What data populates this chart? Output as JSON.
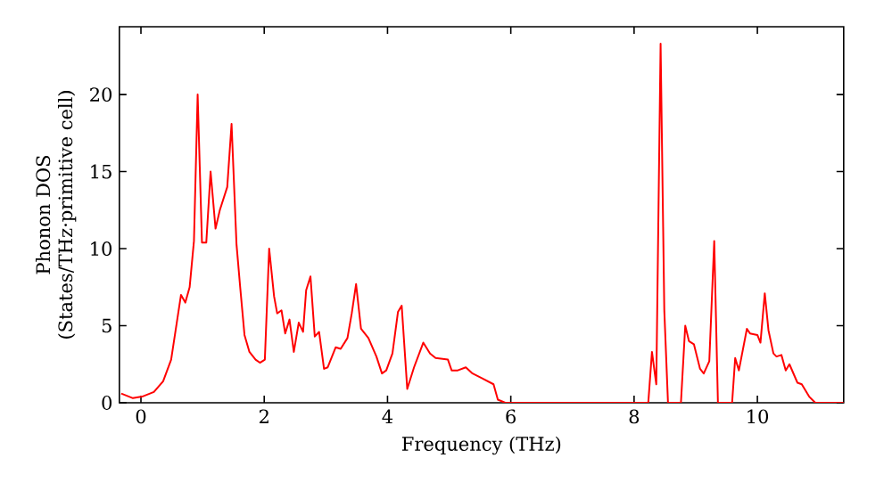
{
  "chart_data": {
    "type": "line",
    "xlabel": "Frequency (THz)",
    "ylabel": "Phonon DOS\n(States/THz·primitive cell)",
    "xlim": [
      -0.35,
      11.4
    ],
    "ylim": [
      0,
      24.4
    ],
    "xticks": [
      0,
      2,
      4,
      6,
      8,
      10
    ],
    "yticks": [
      0,
      5,
      10,
      15,
      20
    ],
    "series": [
      {
        "color": "#ff0000",
        "x": [
          -0.32,
          -0.13,
          0.02,
          0.21,
          0.36,
          0.49,
          0.65,
          0.72,
          0.79,
          0.86,
          0.92,
          0.99,
          1.06,
          1.13,
          1.21,
          1.28,
          1.4,
          1.47,
          1.55,
          1.61,
          1.68,
          1.76,
          1.86,
          1.93,
          2.01,
          2.08,
          2.16,
          2.21,
          2.28,
          2.34,
          2.41,
          2.48,
          2.56,
          2.63,
          2.68,
          2.75,
          2.82,
          2.89,
          2.97,
          3.03,
          3.16,
          3.24,
          3.35,
          3.42,
          3.49,
          3.57,
          3.69,
          3.82,
          3.91,
          3.98,
          4.08,
          4.17,
          4.23,
          4.32,
          4.43,
          4.58,
          4.69,
          4.78,
          4.98,
          5.04,
          5.14,
          5.27,
          5.38,
          5.53,
          5.72,
          5.79,
          5.91,
          8.23,
          8.29,
          8.36,
          8.43,
          8.49,
          8.55,
          8.76,
          8.83,
          8.89,
          8.97,
          9.07,
          9.13,
          9.22,
          9.3,
          9.36,
          9.59,
          9.64,
          9.7,
          9.83,
          9.88,
          10.0,
          10.05,
          10.12,
          10.18,
          10.26,
          10.31,
          10.39,
          10.46,
          10.52,
          10.65,
          10.72,
          10.84,
          10.94,
          11.4
        ],
        "values": [
          0.6,
          0.3,
          0.4,
          0.7,
          1.4,
          2.8,
          7.0,
          6.5,
          7.5,
          10.5,
          20,
          10.4,
          10.4,
          15,
          11.3,
          12.5,
          14,
          18.1,
          10.3,
          7.5,
          4.4,
          3.3,
          2.8,
          2.6,
          2.8,
          10.0,
          6.9,
          5.8,
          6.0,
          4.5,
          5.4,
          3.3,
          5.2,
          4.6,
          7.3,
          8.2,
          4.3,
          4.6,
          2.2,
          2.3,
          3.6,
          3.5,
          4.2,
          5.8,
          7.7,
          4.8,
          4.2,
          3.0,
          1.9,
          2.1,
          3.2,
          5.9,
          6.3,
          0.9,
          2.3,
          3.9,
          3.2,
          2.9,
          2.8,
          2.1,
          2.1,
          2.3,
          1.9,
          1.6,
          1.2,
          0.2,
          0,
          0,
          3.3,
          1.2,
          23.3,
          6,
          0,
          0,
          5.0,
          4.0,
          3.8,
          2.2,
          1.9,
          2.7,
          10.5,
          0,
          0,
          2.9,
          2.1,
          4.8,
          4.5,
          4.4,
          3.9,
          7.1,
          4.7,
          3.2,
          3.0,
          3.1,
          2.1,
          2.5,
          1.3,
          1.2,
          0.4,
          0,
          0
        ]
      }
    ]
  }
}
